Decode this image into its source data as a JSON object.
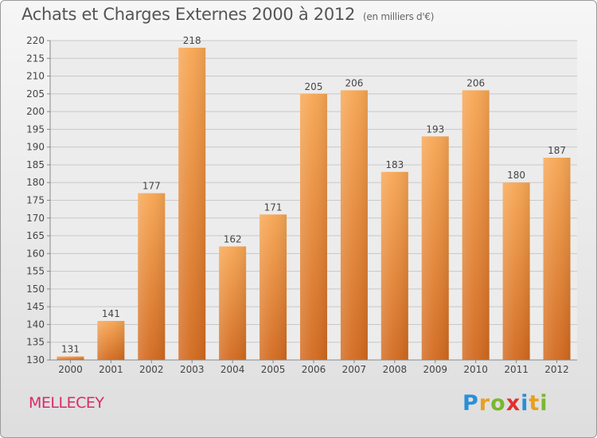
{
  "title": "Achats et Charges Externes 2000 à 2012",
  "subtitle": "(en milliers d'€)",
  "location": "MELLECEY",
  "logo": {
    "letters": [
      "P",
      "r",
      "o",
      "x",
      "i",
      "t",
      "i"
    ],
    "colors": [
      "#2a8fd8",
      "#e8a020",
      "#7ab830",
      "#e23030",
      "#2a8fd8",
      "#e8a020",
      "#7ab830"
    ]
  },
  "chart_data": {
    "type": "bar",
    "title": "Achats et Charges Externes 2000 à 2012",
    "categories": [
      "2000",
      "2001",
      "2002",
      "2003",
      "2004",
      "2005",
      "2006",
      "2007",
      "2008",
      "2009",
      "2010",
      "2011",
      "2012"
    ],
    "values": [
      131,
      141,
      177,
      218,
      162,
      171,
      205,
      206,
      183,
      193,
      206,
      180,
      187
    ],
    "ylim": [
      130,
      220
    ],
    "yticks": [
      130,
      135,
      140,
      145,
      150,
      155,
      160,
      165,
      170,
      175,
      180,
      185,
      190,
      195,
      200,
      205,
      210,
      215,
      220
    ],
    "grid": true,
    "bar_color": "#f0913a"
  }
}
